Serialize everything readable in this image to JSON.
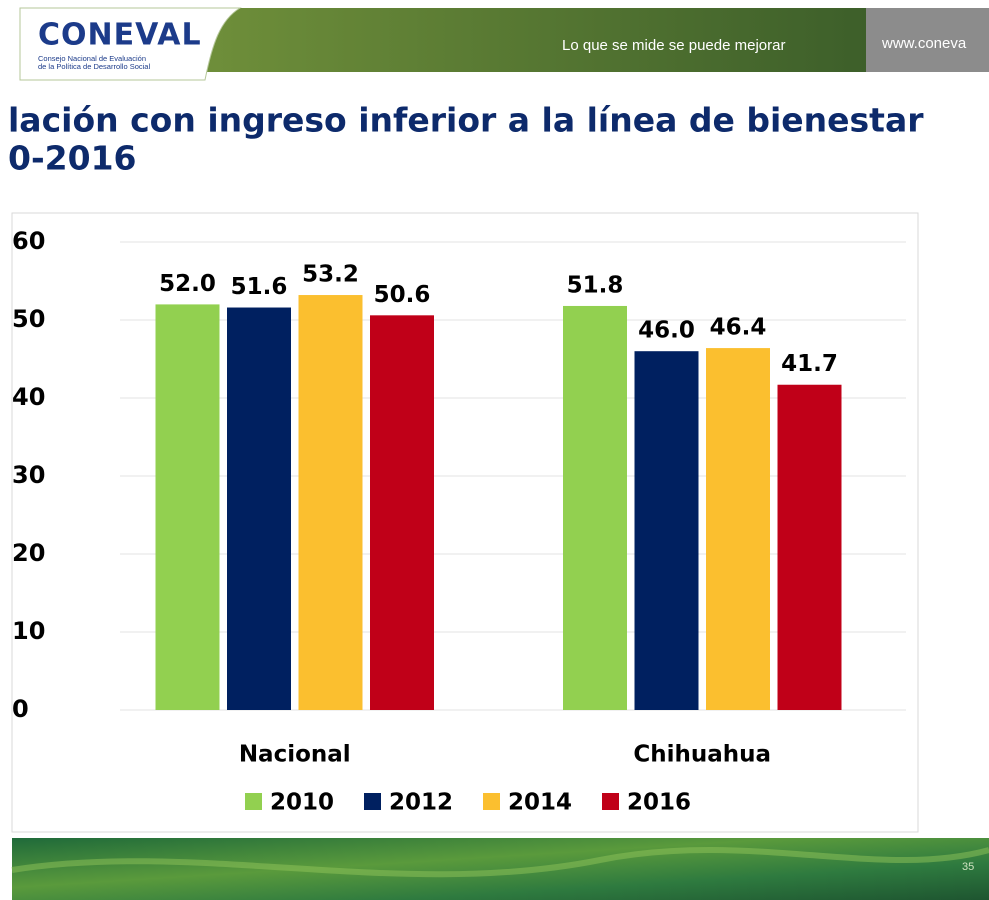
{
  "header": {
    "logo": "CONEVAL",
    "organization": [
      "Consejo Nacional de Evaluación",
      "de la Política de Desarrollo Social"
    ],
    "tagline": "Lo que se mide se puede mejorar",
    "url": "www.coneva"
  },
  "chart_data": {
    "type": "bar",
    "title": "lación con ingreso inferior a la línea de bienestar",
    "subtitle": "0-2016",
    "categories": [
      "Nacional",
      "Chihuahua"
    ],
    "series": [
      {
        "name": "2010",
        "color": "#92d050",
        "values": [
          52.0,
          51.8
        ],
        "value_labels": [
          "52.0",
          "51.8"
        ]
      },
      {
        "name": "2012",
        "color": "#002060",
        "values": [
          51.6,
          46.0
        ],
        "value_labels": [
          "51.6",
          "46.0"
        ]
      },
      {
        "name": "2014",
        "color": "#fbbf2f",
        "values": [
          53.2,
          46.4
        ],
        "value_labels": [
          "53.2",
          "46.4"
        ]
      },
      {
        "name": "2016",
        "color": "#c00018",
        "values": [
          50.6,
          41.7
        ],
        "value_labels": [
          "50.6",
          "41.7"
        ]
      }
    ],
    "ylim": [
      0,
      60
    ],
    "yticks": [
      0,
      10,
      20,
      30,
      40,
      50,
      60
    ],
    "grid": true,
    "legend": "bottom"
  },
  "footer": {
    "page": "35"
  }
}
